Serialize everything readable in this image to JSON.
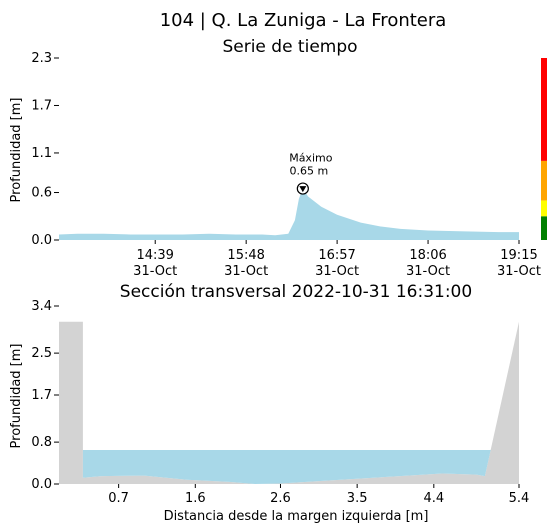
{
  "figure_title": "104 | Q. La Zuniga - La Frontera",
  "colors": {
    "water": "#a8d8e8",
    "ground": "#d3d3d3",
    "level_bar": [
      "#008000",
      "#ffff00",
      "#ffa500",
      "#ff0000"
    ]
  },
  "chart_data": [
    {
      "type": "area",
      "title": "Serie de tiempo",
      "ylabel": "Profundidad [m]",
      "xlabel": "",
      "ylim": [
        0,
        2.3
      ],
      "yticks": [
        "0.0",
        "0.6",
        "1.1",
        "1.7",
        "2.3"
      ],
      "xlim": [
        "2022-10-31 13:26",
        "2022-10-31 19:15"
      ],
      "xticks": [
        {
          "time": "2022-10-31 14:39",
          "line1": "14:39",
          "line2": "31-Oct"
        },
        {
          "time": "2022-10-31 15:48",
          "line1": "15:48",
          "line2": "31-Oct"
        },
        {
          "time": "2022-10-31 16:57",
          "line1": "16:57",
          "line2": "31-Oct"
        },
        {
          "time": "2022-10-31 18:06",
          "line1": "18:06",
          "line2": "31-Oct"
        },
        {
          "time": "2022-10-31 19:15",
          "line1": "19:15",
          "line2": "31-Oct"
        }
      ],
      "series": [
        {
          "x": [
            "2022-10-31 13:26",
            "2022-10-31 13:40",
            "2022-10-31 14:00",
            "2022-10-31 14:20",
            "2022-10-31 14:40",
            "2022-10-31 15:00",
            "2022-10-31 15:20",
            "2022-10-31 15:40",
            "2022-10-31 16:00",
            "2022-10-31 16:10",
            "2022-10-31 16:20",
            "2022-10-31 16:25",
            "2022-10-31 16:28",
            "2022-10-31 16:31",
            "2022-10-31 16:35",
            "2022-10-31 16:45",
            "2022-10-31 16:57",
            "2022-10-31 17:15",
            "2022-10-31 17:30",
            "2022-10-31 17:45",
            "2022-10-31 18:06",
            "2022-10-31 18:30",
            "2022-10-31 19:00",
            "2022-10-31 19:15"
          ],
          "y": [
            0.07,
            0.08,
            0.08,
            0.07,
            0.07,
            0.07,
            0.08,
            0.07,
            0.07,
            0.06,
            0.08,
            0.25,
            0.52,
            0.65,
            0.55,
            0.42,
            0.32,
            0.22,
            0.17,
            0.14,
            0.12,
            0.11,
            0.1,
            0.1
          ]
        }
      ],
      "annotation": {
        "text_line1": "Máximo",
        "text_line2": "0.65 m",
        "time": "2022-10-31 16:31",
        "value": 0.65
      },
      "level_thresholds": [
        0.3,
        0.5,
        1.0,
        2.3
      ]
    },
    {
      "type": "area",
      "title": "Sección transversal 2022-10-31 16:31:00",
      "ylabel": "Profundidad [m]",
      "xlabel": "Distancia desde la margen izquierda [m]",
      "ylim": [
        0,
        3.4
      ],
      "xlim": [
        0,
        5.4
      ],
      "yticks": [
        "0.0",
        "0.8",
        "1.7",
        "2.5",
        "3.4"
      ],
      "xticks": [
        "0.7",
        "1.6",
        "2.6",
        "3.5",
        "4.4",
        "5.4"
      ],
      "xtick_values": [
        0.7,
        1.6,
        2.6,
        3.5,
        4.4,
        5.4
      ],
      "ground": {
        "x": [
          0.0,
          0.0,
          0.28,
          0.28,
          0.5,
          1.0,
          1.5,
          2.0,
          2.3,
          2.6,
          3.0,
          3.5,
          4.0,
          4.5,
          4.9,
          5.0,
          5.4
        ],
        "y": [
          0.0,
          3.1,
          3.1,
          0.12,
          0.15,
          0.16,
          0.08,
          0.04,
          0.0,
          0.01,
          0.05,
          0.1,
          0.15,
          0.2,
          0.18,
          0.15,
          3.1
        ]
      },
      "water_level": 0.65,
      "water_x": [
        0.28,
        5.07
      ]
    }
  ]
}
